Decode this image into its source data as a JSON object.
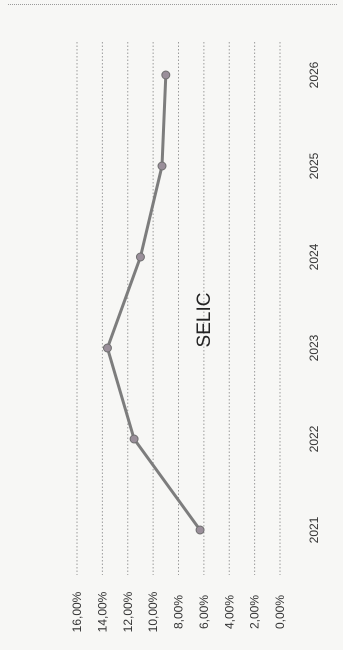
{
  "chart_data": {
    "type": "line",
    "title": "SELIC",
    "x": [
      "2021",
      "2022",
      "2023",
      "2024",
      "2025",
      "2026"
    ],
    "series": [
      {
        "values": [
          6.3,
          11.5,
          13.6,
          11.0,
          9.3,
          9.0
        ]
      }
    ],
    "ylim": [
      0,
      16
    ],
    "y_ticks": [
      "0,00%",
      "2,00%",
      "4,00%",
      "6,00%",
      "8,00%",
      "10,00%",
      "12,00%",
      "14,00%",
      "16,00%"
    ],
    "grid": true,
    "orientation": "rotated 90° clockwise",
    "colors": {
      "line": "#7d7d7d",
      "marker": "#9a8f9a",
      "grid": "#9b9b9b"
    }
  }
}
